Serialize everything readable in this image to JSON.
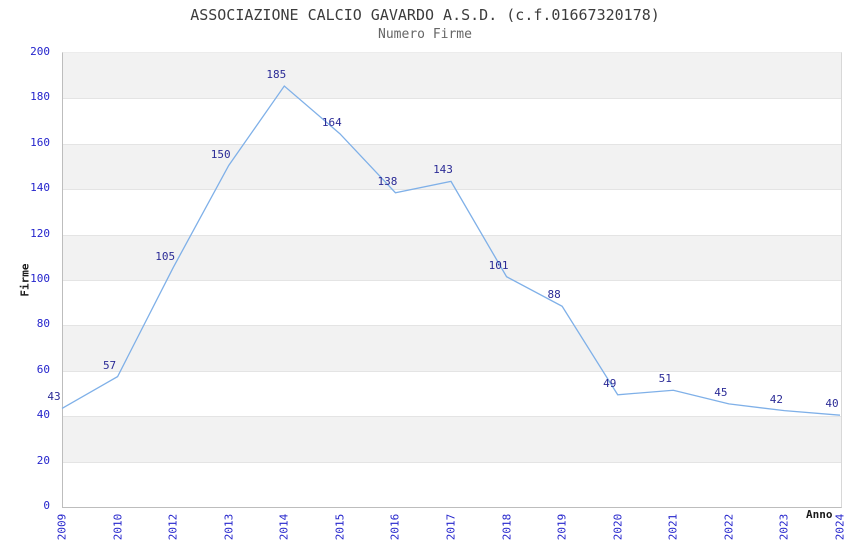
{
  "chart_data": {
    "type": "line",
    "title": "ASSOCIAZIONE CALCIO GAVARDO A.S.D. (c.f.01667320178)",
    "subtitle": "Numero Firme",
    "xlabel": "Anno",
    "ylabel": "Firme",
    "categories": [
      "2009",
      "2010",
      "2012",
      "2013",
      "2014",
      "2015",
      "2016",
      "2017",
      "2018",
      "2019",
      "2020",
      "2021",
      "2022",
      "2023",
      "2024"
    ],
    "values": [
      43,
      57,
      105,
      150,
      185,
      164,
      138,
      143,
      101,
      88,
      49,
      51,
      45,
      42,
      40
    ],
    "ylim": [
      0,
      200
    ],
    "ytick_step": 20,
    "grid": true,
    "legend": "none",
    "band_color_odd": "#f2f2f2",
    "band_color_even": "#ffffff",
    "line_color": "#7fb0e8",
    "point_label_color": "#2b2b96",
    "tick_label_color": "#2424cc",
    "title_color": "#3c3c3c",
    "subtitle_color": "#666666"
  }
}
